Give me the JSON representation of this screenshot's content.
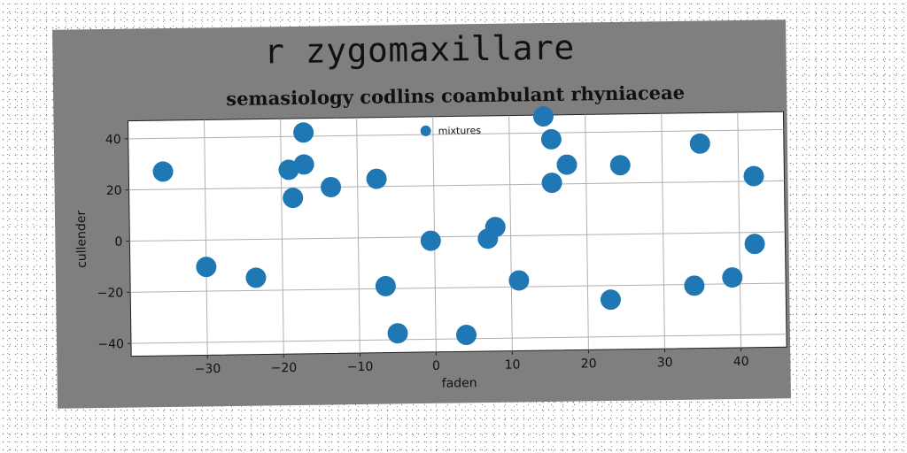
{
  "figure": {
    "suptitle": "r zygomaxillare"
  },
  "chart_data": {
    "type": "scatter",
    "title": "semasiology codlins coambulant rhyniaceae",
    "xlabel": "faden",
    "ylabel": "cullender",
    "xlim": [
      -40,
      46
    ],
    "ylim": [
      -45,
      47
    ],
    "xticks": [
      -30,
      -20,
      -10,
      0,
      10,
      20,
      30,
      40
    ],
    "yticks": [
      -40,
      -20,
      0,
      20,
      40
    ],
    "grid": true,
    "legend_position": "top-center",
    "series": [
      {
        "name": "mixtures",
        "color": "#1f77b4",
        "points": [
          {
            "x": -35.5,
            "y": 27
          },
          {
            "x": -30,
            "y": -10.5
          },
          {
            "x": -23.5,
            "y": -15
          },
          {
            "x": -19,
            "y": 27
          },
          {
            "x": -18.5,
            "y": 16
          },
          {
            "x": -17,
            "y": 29
          },
          {
            "x": -17,
            "y": 41.5
          },
          {
            "x": -13.5,
            "y": 20
          },
          {
            "x": -7.5,
            "y": 23
          },
          {
            "x": -6.5,
            "y": -19
          },
          {
            "x": -5,
            "y": -37.5
          },
          {
            "x": -0.5,
            "y": -1.5
          },
          {
            "x": 4,
            "y": -38.5
          },
          {
            "x": 7,
            "y": -1
          },
          {
            "x": 8,
            "y": 3.5
          },
          {
            "x": 11,
            "y": -17.5
          },
          {
            "x": 14.5,
            "y": 46.5
          },
          {
            "x": 15.5,
            "y": 37.5
          },
          {
            "x": 15.5,
            "y": 20.5
          },
          {
            "x": 17.5,
            "y": 27.5
          },
          {
            "x": 23,
            "y": -25.5
          },
          {
            "x": 24.5,
            "y": 27
          },
          {
            "x": 34,
            "y": -20.5
          },
          {
            "x": 35,
            "y": 35
          },
          {
            "x": 39,
            "y": -17.5
          },
          {
            "x": 42,
            "y": 22
          },
          {
            "x": 42,
            "y": -4.5
          }
        ]
      }
    ]
  }
}
